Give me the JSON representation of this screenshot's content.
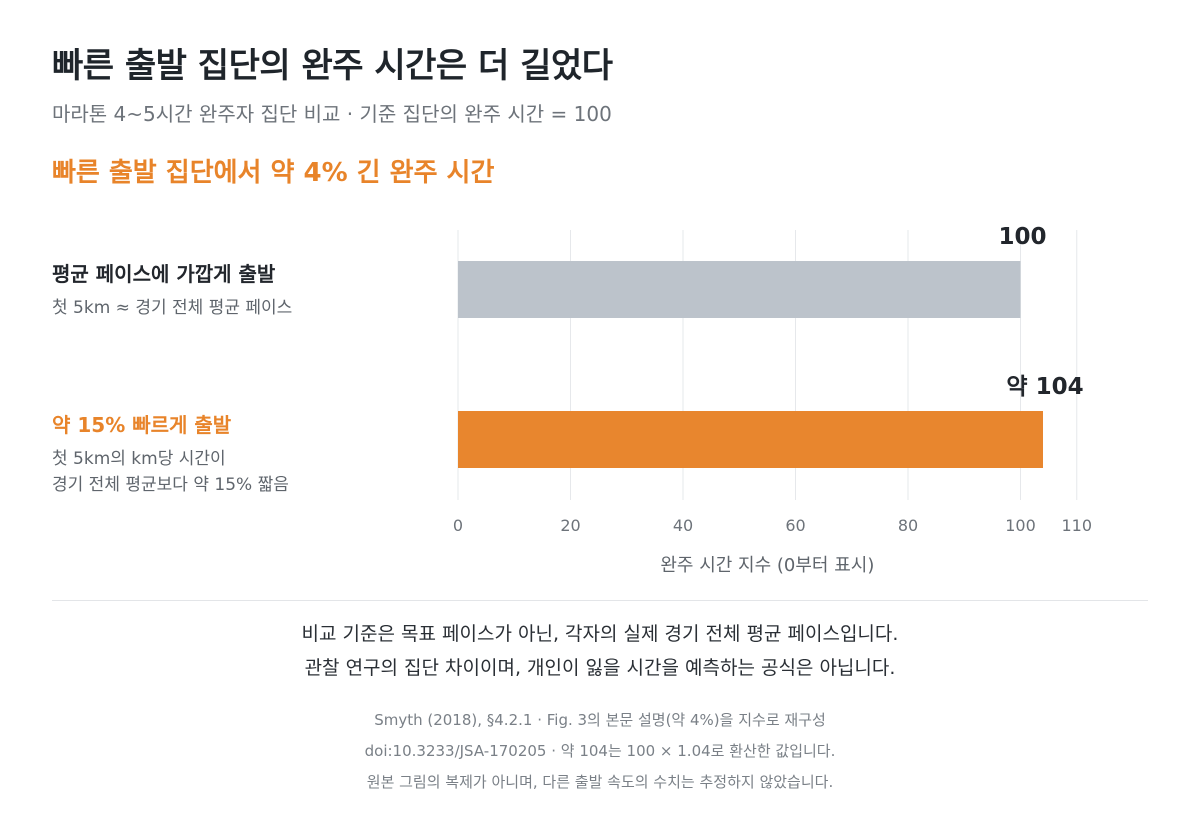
{
  "header": {
    "title": "빠른 출발 집단의 완주 시간은 더 길었다",
    "subtitle": "마라톤 4~5시간 완주자 집단 비교 · 기준 집단의 완주 시간 = 100",
    "headline": "빠른 출발 집단에서 약 4% 긴 완주 시간"
  },
  "categories": [
    {
      "label": "평균 페이스에 가깝게 출발",
      "notes": [
        "첫 5km ≈ 경기 전체 평균 페이스"
      ]
    },
    {
      "label": "약 15% 빠르게 출발",
      "notes": [
        "첫 5km의 km당 시간이",
        "경기 전체 평균보다 약 15% 짧음"
      ]
    }
  ],
  "chart_data": {
    "type": "bar",
    "orientation": "horizontal",
    "categories": [
      "평균 페이스에 가깝게 출발",
      "약 15% 빠르게 출발"
    ],
    "values": [
      100,
      104
    ],
    "data_labels": [
      "100",
      "약 104"
    ],
    "colors": [
      "#bcc3cb",
      "#e8862e"
    ],
    "xlabel": "완주 시간 지수 (0부터 표시)",
    "xlim": [
      0,
      110
    ],
    "xticks": [
      0,
      20,
      40,
      60,
      80,
      100,
      110
    ],
    "grid": true
  },
  "footer": {
    "main_lines": [
      "비교 기준은 목표 페이스가 아닌, 각자의 실제 경기 전체 평균 페이스입니다.",
      "관찰 연구의 집단 차이이며, 개인이 잃을 시간을 예측하는 공식은 아닙니다."
    ],
    "source_lines": [
      "Smyth (2018), §4.2.1 · Fig. 3의 본문 설명(약 4%)을 지수로 재구성",
      "doi:10.3233/JSA-170205 · 약 104는 100 × 1.04로 환산한 값입니다.",
      "원본 그림의 복제가 아니며, 다른 출발 속도의 수치는 추정하지 않았습니다."
    ]
  }
}
